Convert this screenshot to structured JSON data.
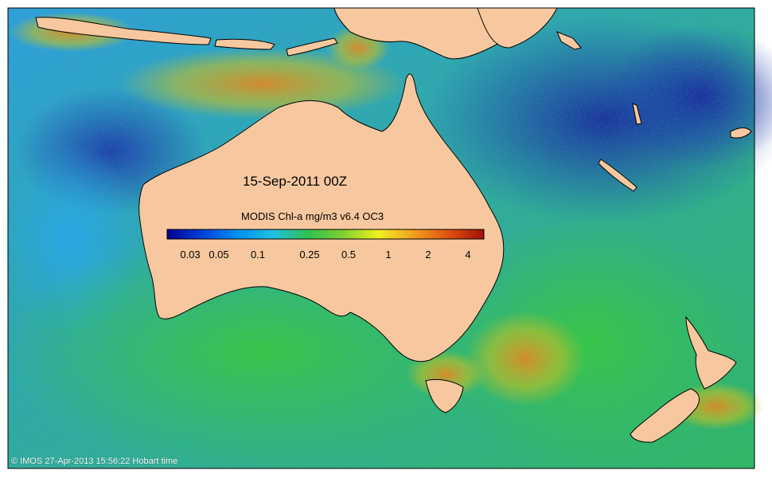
{
  "map": {
    "date_label": "15-Sep-2011 00Z",
    "colorbar_title": "MODIS Chl-a mg/m3 v6.4 OC3",
    "colorbar_ticks": [
      "0.03",
      "0.05",
      "0.1",
      "0.25",
      "0.5",
      "1",
      "2",
      "4"
    ],
    "credit": "© IMOS 27-Apr-2013 15:56:22 Hobart time",
    "colors": {
      "land": "#f7c89f",
      "ocean_low": "#1a3a9e",
      "ocean_mid": "#2e9ee0",
      "ocean_green": "#3cc84a",
      "ocean_high": "#e8a020",
      "ocean_max": "#8b1a0a"
    },
    "colormap": [
      "#00008f",
      "#0040d8",
      "#0090f0",
      "#20c0e0",
      "#30c050",
      "#80d030",
      "#f0f020",
      "#f0a020",
      "#e05010",
      "#a01008"
    ]
  }
}
